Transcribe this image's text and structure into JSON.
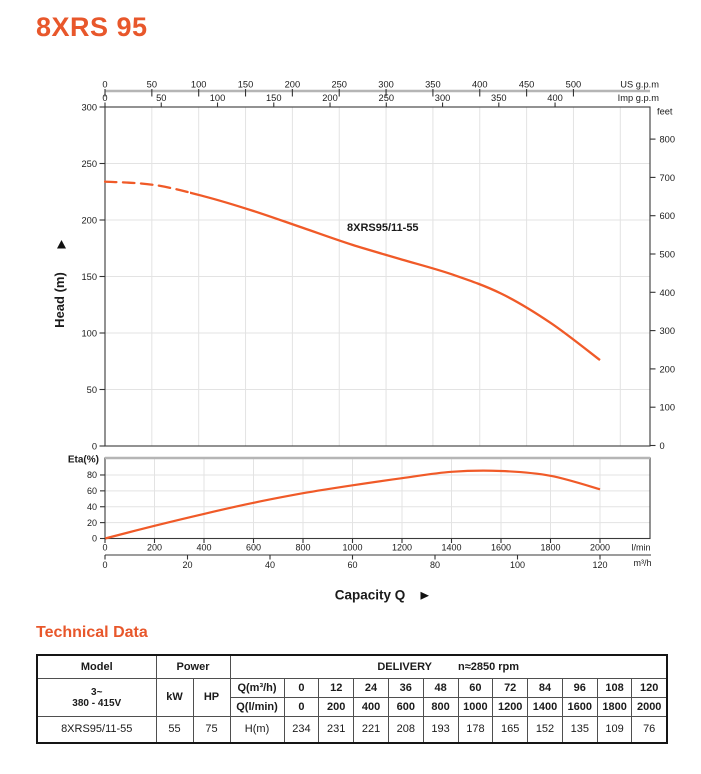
{
  "colors": {
    "accent": "#E8572B",
    "curve": "#F05A28"
  },
  "title": "8XRS 95",
  "chart_data": {
    "type": "line",
    "x_axis_label": "Capacity Q",
    "head_curve": {
      "name": "8XRS95/11-55",
      "q_lmin": [
        0,
        200,
        400,
        600,
        800,
        1000,
        1200,
        1400,
        1600,
        1800,
        2000
      ],
      "head_m": [
        234,
        231,
        221,
        208,
        193,
        178,
        165,
        152,
        135,
        109,
        76
      ],
      "dashed_until_lmin": 340
    },
    "eta_curve": {
      "q_lmin": [
        0,
        200,
        400,
        600,
        800,
        1000,
        1200,
        1400,
        1600,
        1800,
        2000
      ],
      "eta_pct": [
        0,
        16,
        31,
        45,
        57,
        67,
        76,
        84,
        85,
        79,
        62
      ]
    },
    "axes": {
      "us_gpm": {
        "unit": "US g.p.m",
        "ticks": [
          0,
          50,
          100,
          150,
          200,
          250,
          300,
          350,
          400,
          450,
          500
        ]
      },
      "imp_gpm": {
        "unit": "Imp g.p.m",
        "ticks": [
          0,
          50,
          100,
          150,
          200,
          250,
          300,
          350,
          400
        ]
      },
      "head_m": {
        "label": "Head (m)",
        "ticks": [
          0,
          50,
          100,
          150,
          200,
          250,
          300
        ],
        "range": [
          0,
          300
        ]
      },
      "feet": {
        "unit": "feet",
        "ticks": [
          0,
          100,
          200,
          300,
          400,
          500,
          600,
          700,
          800
        ]
      },
      "eta_pct": {
        "label": "Eta(%)",
        "ticks": [
          0,
          20,
          40,
          60,
          80
        ]
      },
      "lmin": {
        "unit": "l/min",
        "ticks": [
          0,
          200,
          400,
          600,
          800,
          1000,
          1200,
          1400,
          1600,
          1800,
          2000
        ]
      },
      "m3h": {
        "unit": "m³/h",
        "ticks": [
          0,
          20,
          40,
          60,
          80,
          100,
          120
        ]
      }
    }
  },
  "tech": {
    "heading": "Technical Data",
    "table": {
      "model_header": "Model",
      "power_header": "Power",
      "delivery_header": "DELIVERY",
      "rpm": "n≈2850 rpm",
      "phase": "3~",
      "voltage": "380 - 415V",
      "kw_header": "kW",
      "hp_header": "HP",
      "q_m3h_label": "Q(m³/h)",
      "q_lmin_label": "Q(l/min)",
      "h_m_label": "H(m)",
      "model": "8XRS95/11-55",
      "kw": "55",
      "hp": "75",
      "q_m3h": [
        "0",
        "12",
        "24",
        "36",
        "48",
        "60",
        "72",
        "84",
        "96",
        "108",
        "120"
      ],
      "q_lmin": [
        "0",
        "200",
        "400",
        "600",
        "800",
        "1000",
        "1200",
        "1400",
        "1600",
        "1800",
        "2000"
      ],
      "h_m": [
        "234",
        "231",
        "221",
        "208",
        "193",
        "178",
        "165",
        "152",
        "135",
        "109",
        "76"
      ]
    }
  }
}
